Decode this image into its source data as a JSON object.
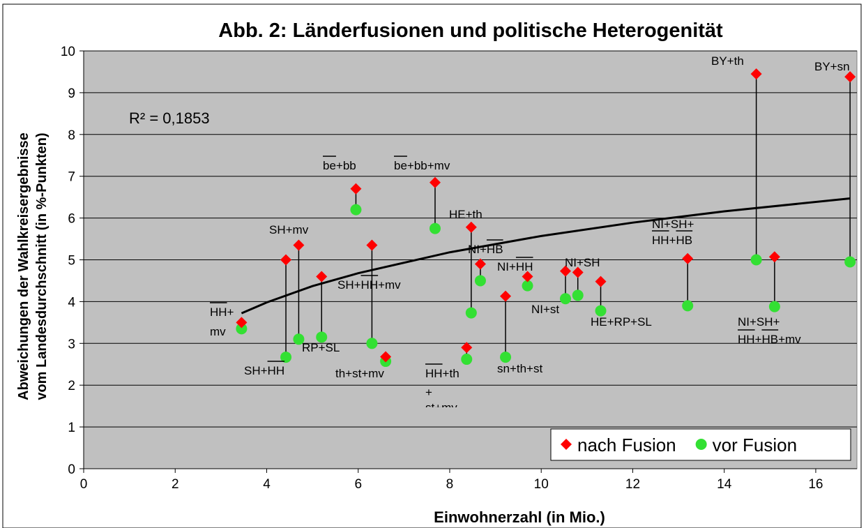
{
  "chart_data": {
    "type": "scatter",
    "title": "Abb. 2: Länderfusionen und politische Heterogenität",
    "y_label": [
      "Abweichungen der Wahlkreisergebnisse",
      "vom Landesdurchschnitt (in %-Punkten)"
    ],
    "x_label": "Einwohnerzahl (in Mio.)",
    "x": [
      3.45,
      4.42,
      4.7,
      5.2,
      5.95,
      6.3,
      6.6,
      7.68,
      8.37,
      8.47,
      8.67,
      9.22,
      9.7,
      10.53,
      10.8,
      11.3,
      13.2,
      14.7,
      15.1,
      16.75
    ],
    "series": [
      {
        "name": "nach Fusion",
        "color": "#ff0000",
        "marker": "diamond",
        "values": [
          3.5,
          5.0,
          5.35,
          4.6,
          6.7,
          5.35,
          2.68,
          6.85,
          2.9,
          5.78,
          4.9,
          4.13,
          4.6,
          4.73,
          4.7,
          4.48,
          5.03,
          9.45,
          5.07,
          9.38
        ]
      },
      {
        "name": "vor Fusion",
        "color": "#33e033",
        "marker": "circle",
        "values": [
          3.35,
          2.67,
          3.1,
          3.15,
          6.2,
          3.0,
          2.57,
          5.75,
          2.62,
          3.73,
          4.5,
          2.67,
          4.38,
          4.07,
          4.15,
          3.78,
          3.9,
          5.0,
          3.88,
          4.95
        ]
      }
    ],
    "trendline": {
      "x": [
        3.45,
        4,
        5,
        6,
        8,
        10,
        12,
        14,
        16.75
      ],
      "values": [
        3.72,
        3.98,
        4.37,
        4.68,
        5.18,
        5.57,
        5.89,
        6.16,
        6.47
      ]
    },
    "r_squared": "R² = 0,1853",
    "annotations": [
      "be+bb",
      "be+bb+mv",
      "SH+mv",
      "HE+th",
      "NI+HB",
      "NI+HH",
      "NI+SH",
      "NI+SH+",
      "HH+HB",
      "BY+th",
      "BY+sn",
      "HH+",
      "mv",
      "SH+HH+mv",
      "RP+SL",
      "SH+HH",
      "th+st+mv",
      "HH+th",
      "+",
      "st+mv",
      "sn+th+st",
      "NI+st",
      "HE+RP+SL",
      "NI+SH+",
      "HH+HB+mv"
    ],
    "xlim": [
      0,
      16.9
    ],
    "ylim": [
      0,
      10
    ],
    "xticks": [
      0,
      2,
      4,
      6,
      8,
      10,
      12,
      14,
      16
    ],
    "yticks": [
      0,
      1,
      2,
      3,
      4,
      5,
      6,
      7,
      8,
      9,
      10
    ],
    "grid": true,
    "legend": "bottom-right"
  }
}
